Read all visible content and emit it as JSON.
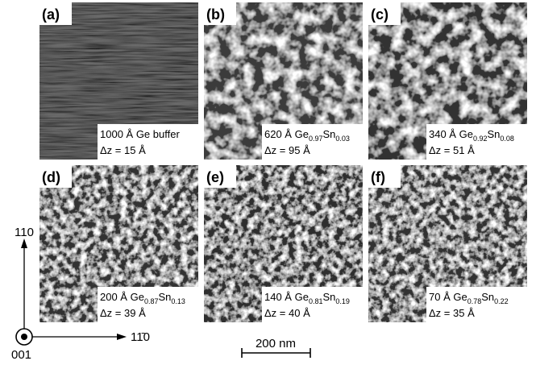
{
  "panels": [
    {
      "label": "(a)",
      "caption": [
        {
          "text": "1000 Å Ge buffer"
        }
      ],
      "dz": "Δz = 15 Å"
    },
    {
      "label": "(b)",
      "caption": [
        {
          "text": "620 Å Ge"
        },
        {
          "sub": "0.97"
        },
        {
          "text": "Sn"
        },
        {
          "sub": "0.03"
        }
      ],
      "dz": "Δz = 95 Å"
    },
    {
      "label": "(c)",
      "caption": [
        {
          "text": "340 Å Ge"
        },
        {
          "sub": "0.92"
        },
        {
          "text": "Sn"
        },
        {
          "sub": "0.08"
        }
      ],
      "dz": "Δz = 51 Å"
    },
    {
      "label": "(d)",
      "caption": [
        {
          "text": "200 Å Ge"
        },
        {
          "sub": "0.87"
        },
        {
          "text": "Sn"
        },
        {
          "sub": "0.13"
        }
      ],
      "dz": "Δz = 39 Å"
    },
    {
      "label": "(e)",
      "caption": [
        {
          "text": "140 Å Ge"
        },
        {
          "sub": "0.81"
        },
        {
          "text": "Sn"
        },
        {
          "sub": "0.19"
        }
      ],
      "dz": "Δz = 40 Å"
    },
    {
      "label": "(f)",
      "caption": [
        {
          "text": "70 Å Ge"
        },
        {
          "sub": "0.78"
        },
        {
          "text": "Sn"
        },
        {
          "sub": "0.22"
        }
      ],
      "dz": "Δz = 35 Å"
    }
  ],
  "axes": {
    "vertical": "110",
    "horizontal": "11̄0",
    "normal": "001"
  },
  "scale_bar": "200 nm"
}
